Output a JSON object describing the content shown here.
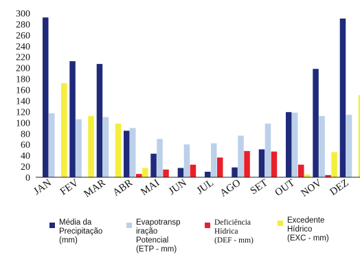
{
  "chart_data": {
    "type": "bar",
    "categories": [
      "JAN",
      "FEV",
      "MAR",
      "ABR",
      "MAI",
      "JUN",
      "JUL",
      "AGO",
      "SET",
      "OUT",
      "NOV",
      "DEZ"
    ],
    "ylim": [
      0,
      300
    ],
    "yticks": [
      0,
      20,
      40,
      60,
      80,
      100,
      120,
      140,
      160,
      180,
      200,
      220,
      240,
      260,
      280,
      300
    ],
    "grid": false,
    "legend_position": "bottom",
    "series": [
      {
        "name": "Média da\nPrecipitação\n(mm)",
        "color": "#1f2a7a",
        "values": [
          292,
          212,
          207,
          85,
          43,
          17,
          10,
          18,
          51,
          119,
          198,
          290
        ]
      },
      {
        "name": "Evapotransp\niração\nPotencial\n(ETP - mm)",
        "color": "#bcd0ea",
        "values": [
          117,
          106,
          110,
          90,
          70,
          60,
          62,
          76,
          98,
          118,
          112,
          114
        ]
      },
      {
        "name": "Deficiência\nHídrica\n(DEF - mm)",
        "color": "#e8202a",
        "values": [
          0,
          0,
          0,
          6,
          14,
          23,
          36,
          48,
          47,
          23,
          4,
          0
        ]
      },
      {
        "name": "Excedente\nHídrico\n(EXC - mm)",
        "color": "#f4ee3c",
        "values": [
          172,
          112,
          98,
          17,
          0,
          0,
          0,
          0,
          0,
          5,
          46,
          150
        ]
      }
    ]
  }
}
